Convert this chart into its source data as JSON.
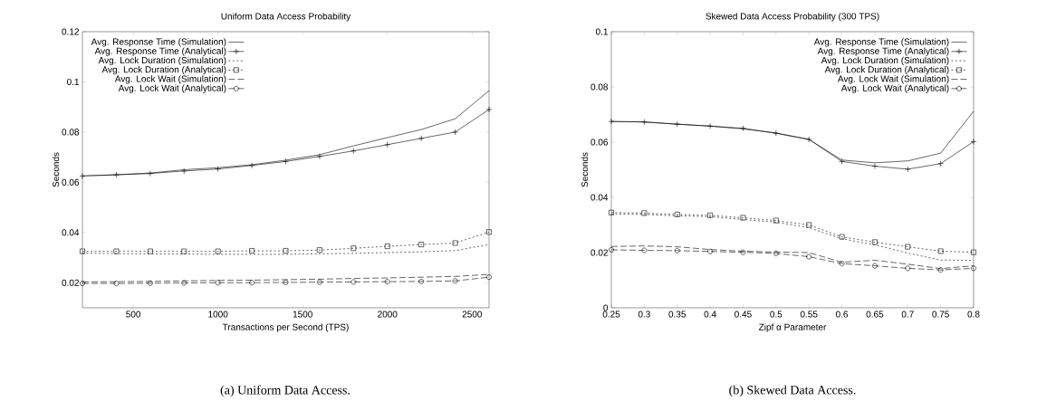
{
  "chart_data": [
    {
      "type": "line",
      "title": "Uniform Data Access Probability",
      "xlabel": "Transactions per Second (TPS)",
      "ylabel": "Seconds",
      "annotations": [
        "(a) Uniform Data Access."
      ],
      "x": [
        200,
        400,
        600,
        800,
        1000,
        1200,
        1400,
        1600,
        1800,
        2000,
        2200,
        2400,
        2600
      ],
      "xlim": [
        200,
        2600
      ],
      "xticks": [
        500,
        1000,
        1500,
        2000,
        2500
      ],
      "ylim": [
        0.01,
        0.12
      ],
      "yticks": [
        0.02,
        0.04,
        0.06,
        0.08,
        0.1,
        0.12
      ],
      "legend": "top left",
      "grid": false,
      "series": [
        {
          "name": "Avg. Response Time (Simulation)",
          "color": "#000000",
          "line_style": "solid",
          "marker": "none",
          "values": [
            0.0625,
            0.063,
            0.0637,
            0.065,
            0.0658,
            0.067,
            0.0688,
            0.071,
            0.0745,
            0.0778,
            0.081,
            0.0853,
            0.0965
          ]
        },
        {
          "name": "Avg. Response Time (Analytical)",
          "color": "#000000",
          "line_style": "solid",
          "marker": "cross",
          "values": [
            0.0625,
            0.063,
            0.0635,
            0.0645,
            0.0653,
            0.0667,
            0.0683,
            0.0703,
            0.0725,
            0.075,
            0.0775,
            0.08,
            0.089
          ]
        },
        {
          "name": "Avg. Lock Duration (Simulation)",
          "color": "#000000",
          "line_style": "dotted",
          "marker": "none",
          "values": [
            0.0318,
            0.0316,
            0.0315,
            0.0314,
            0.0313,
            0.0313,
            0.0313,
            0.0315,
            0.0317,
            0.032,
            0.0323,
            0.0328,
            0.0352
          ]
        },
        {
          "name": "Avg. Lock Duration (Analytical)",
          "color": "#000000",
          "line_style": "dotted",
          "marker": "square",
          "values": [
            0.0325,
            0.0325,
            0.0325,
            0.0325,
            0.0325,
            0.0327,
            0.0327,
            0.033,
            0.0337,
            0.0345,
            0.0352,
            0.0358,
            0.0402
          ]
        },
        {
          "name": "Avg. Lock Wait (Simulation)",
          "color": "#000000",
          "line_style": "dashed",
          "marker": "none",
          "values": [
            0.0203,
            0.0204,
            0.0205,
            0.0207,
            0.0209,
            0.021,
            0.0212,
            0.0214,
            0.0217,
            0.0219,
            0.0222,
            0.0225,
            0.0233
          ]
        },
        {
          "name": "Avg. Lock Wait (Analytical)",
          "color": "#000000",
          "line_style": "dashed",
          "marker": "circle",
          "values": [
            0.0197,
            0.0197,
            0.0198,
            0.0199,
            0.02,
            0.02,
            0.0201,
            0.0202,
            0.0203,
            0.0204,
            0.0205,
            0.0207,
            0.0222
          ]
        }
      ]
    },
    {
      "type": "line",
      "title": "Skewed Data Access Probability (300 TPS)",
      "xlabel": "Zipf α Parameter",
      "ylabel": "Seconds",
      "annotations": [
        "(b) Skewed Data Access."
      ],
      "x": [
        0.25,
        0.3,
        0.35,
        0.4,
        0.45,
        0.5,
        0.55,
        0.6,
        0.65,
        0.7,
        0.75,
        0.8
      ],
      "xlim": [
        0.25,
        0.8
      ],
      "xticks": [
        0.25,
        0.3,
        0.35,
        0.4,
        0.45,
        0.5,
        0.55,
        0.6,
        0.65,
        0.7,
        0.75,
        0.8
      ],
      "ylim": [
        0,
        0.1
      ],
      "yticks": [
        0,
        0.02,
        0.04,
        0.06,
        0.08,
        0.1
      ],
      "legend": "top right",
      "grid": false,
      "series": [
        {
          "name": "Avg. Response Time (Simulation)",
          "color": "#000000",
          "line_style": "solid",
          "marker": "none",
          "values": [
            0.0675,
            0.0673,
            0.0665,
            0.0658,
            0.0648,
            0.0633,
            0.061,
            0.0535,
            0.0525,
            0.0532,
            0.056,
            0.0712
          ]
        },
        {
          "name": "Avg. Response Time (Analytical)",
          "color": "#000000",
          "line_style": "solid",
          "marker": "cross",
          "values": [
            0.0675,
            0.0673,
            0.0665,
            0.0658,
            0.065,
            0.0632,
            0.061,
            0.053,
            0.0513,
            0.0502,
            0.0522,
            0.0602
          ]
        },
        {
          "name": "Avg. Lock Duration (Simulation)",
          "color": "#000000",
          "line_style": "dotted",
          "marker": "none",
          "values": [
            0.034,
            0.0338,
            0.0333,
            0.033,
            0.032,
            0.031,
            0.029,
            0.025,
            0.0228,
            0.0198,
            0.0173,
            0.0172
          ]
        },
        {
          "name": "Avg. Lock Duration (Analytical)",
          "color": "#000000",
          "line_style": "dotted",
          "marker": "square",
          "values": [
            0.0345,
            0.0343,
            0.0338,
            0.0335,
            0.0326,
            0.0316,
            0.03,
            0.0257,
            0.0238,
            0.0221,
            0.0205,
            0.0201
          ]
        },
        {
          "name": "Avg. Lock Wait (Simulation)",
          "color": "#000000",
          "line_style": "dashed",
          "marker": "none",
          "values": [
            0.0222,
            0.0224,
            0.0221,
            0.0211,
            0.0205,
            0.0202,
            0.02,
            0.0165,
            0.0172,
            0.0158,
            0.0142,
            0.0152
          ]
        },
        {
          "name": "Avg. Lock Wait (Analytical)",
          "color": "#000000",
          "line_style": "dashed",
          "marker": "circle",
          "values": [
            0.021,
            0.0208,
            0.0207,
            0.0204,
            0.0201,
            0.0197,
            0.0185,
            0.016,
            0.0152,
            0.0143,
            0.0137,
            0.0143
          ]
        }
      ]
    }
  ]
}
